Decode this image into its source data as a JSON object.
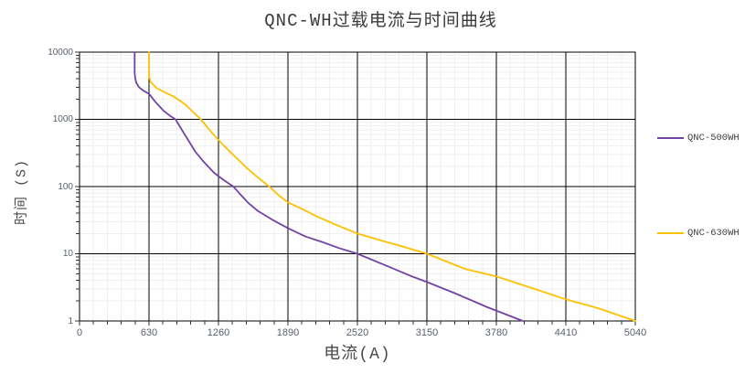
{
  "title": "QNC-WH过载电流与时间曲线",
  "axes": {
    "x_title": "电流(A)",
    "y_title": "时间 (S)"
  },
  "legend": {
    "position": "right",
    "items": [
      {
        "label": "QNC-500WH",
        "color": "#7243A5"
      },
      {
        "label": "QNC-630WH",
        "color": "#FFC000"
      }
    ]
  },
  "chart_data": {
    "type": "line",
    "title": "QNC-WH过载电流与时间曲线",
    "xlabel": "电流(A)",
    "ylabel": "时间 (S)",
    "x_axis": {
      "min": 0,
      "max": 5040,
      "major_step": 630,
      "minor_step": 126,
      "tick_labels": [
        "0",
        "630",
        "1260",
        "1890",
        "2520",
        "3150",
        "3780",
        "4410",
        "5040"
      ]
    },
    "y_axis": {
      "scale": "log",
      "min": 1,
      "max": 10000,
      "tick_labels": [
        "1",
        "10",
        "100",
        "1000",
        "10000"
      ]
    },
    "grid": {
      "major": true,
      "minor": true,
      "major_color": "#000000",
      "minor_color": "#f2eff1"
    },
    "legend_position": "right",
    "series": [
      {
        "name": "QNC-500WH",
        "color": "#7243A5",
        "points": [
          [
            500,
            10000
          ],
          [
            500,
            5000
          ],
          [
            505,
            4100
          ],
          [
            515,
            3500
          ],
          [
            540,
            3000
          ],
          [
            575,
            2700
          ],
          [
            630,
            2400
          ],
          [
            690,
            1800
          ],
          [
            760,
            1350
          ],
          [
            820,
            1130
          ],
          [
            870,
            1000
          ],
          [
            950,
            610
          ],
          [
            1050,
            330
          ],
          [
            1130,
            230
          ],
          [
            1220,
            160
          ],
          [
            1310,
            124
          ],
          [
            1395,
            100
          ],
          [
            1460,
            76
          ],
          [
            1530,
            57
          ],
          [
            1620,
            43
          ],
          [
            1750,
            32
          ],
          [
            1890,
            24
          ],
          [
            2050,
            18
          ],
          [
            2200,
            15
          ],
          [
            2350,
            12.2
          ],
          [
            2520,
            10
          ],
          [
            2750,
            7.0
          ],
          [
            3000,
            4.7
          ],
          [
            3150,
            3.8
          ],
          [
            3400,
            2.6
          ],
          [
            3700,
            1.6
          ],
          [
            4020,
            1
          ]
        ]
      },
      {
        "name": "QNC-630WH",
        "color": "#FFC000",
        "points": [
          [
            630,
            10000
          ],
          [
            630,
            4400
          ],
          [
            645,
            3600
          ],
          [
            700,
            2900
          ],
          [
            780,
            2500
          ],
          [
            850,
            2200
          ],
          [
            920,
            1850
          ],
          [
            970,
            1600
          ],
          [
            1030,
            1280
          ],
          [
            1100,
            1000
          ],
          [
            1200,
            630
          ],
          [
            1300,
            420
          ],
          [
            1400,
            290
          ],
          [
            1500,
            200
          ],
          [
            1610,
            140
          ],
          [
            1720,
            100
          ],
          [
            1800,
            76
          ],
          [
            1890,
            58
          ],
          [
            2000,
            48
          ],
          [
            2150,
            36
          ],
          [
            2300,
            28
          ],
          [
            2520,
            20
          ],
          [
            2720,
            16
          ],
          [
            2930,
            12.8
          ],
          [
            3150,
            10
          ],
          [
            3500,
            5.9
          ],
          [
            3780,
            4.6
          ],
          [
            4100,
            3.1
          ],
          [
            4410,
            2.1
          ],
          [
            4700,
            1.55
          ],
          [
            5040,
            1
          ]
        ]
      }
    ]
  }
}
